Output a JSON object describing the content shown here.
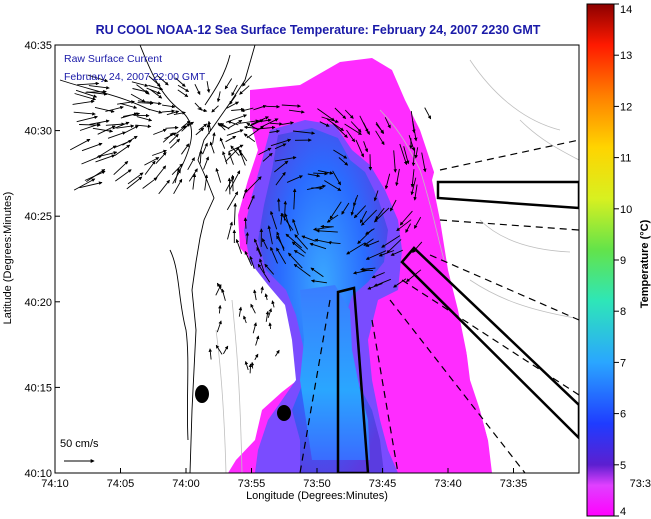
{
  "chart_data": {
    "type": "heatmap",
    "title": "RU COOL  NOAA-12  Sea Surface Temperature:  February 24, 2007 2230 GMT",
    "xlabel": "Longitude (Degrees:Minutes)",
    "ylabel": "Latitude (Degrees:Minutes)",
    "x_ticks": [
      "74:10",
      "74:05",
      "74:00",
      "73:55",
      "73:50",
      "73:45",
      "73:40",
      "73:35",
      "73:3"
    ],
    "y_ticks": [
      "40:10",
      "40:15",
      "40:20",
      "40:25",
      "40:30",
      "40:35"
    ],
    "legend": {
      "series_name": "Raw Surface Current",
      "timestamp": "February 24, 2007 22:00 GMT",
      "scale_label": "50 cm/s"
    },
    "colorbar": {
      "label": "Temperature (°C)",
      "min": 4,
      "max": 14,
      "ticks": [
        "4",
        "5",
        "6",
        "7",
        "8",
        "9",
        "10",
        "11",
        "12",
        "13",
        "14"
      ]
    },
    "colors": {
      "warm_water": "#ff2cff",
      "mid_water": "#7a4cff",
      "cold_water": "#2a86ff",
      "title": "#1a1aa8"
    },
    "grid": false
  }
}
